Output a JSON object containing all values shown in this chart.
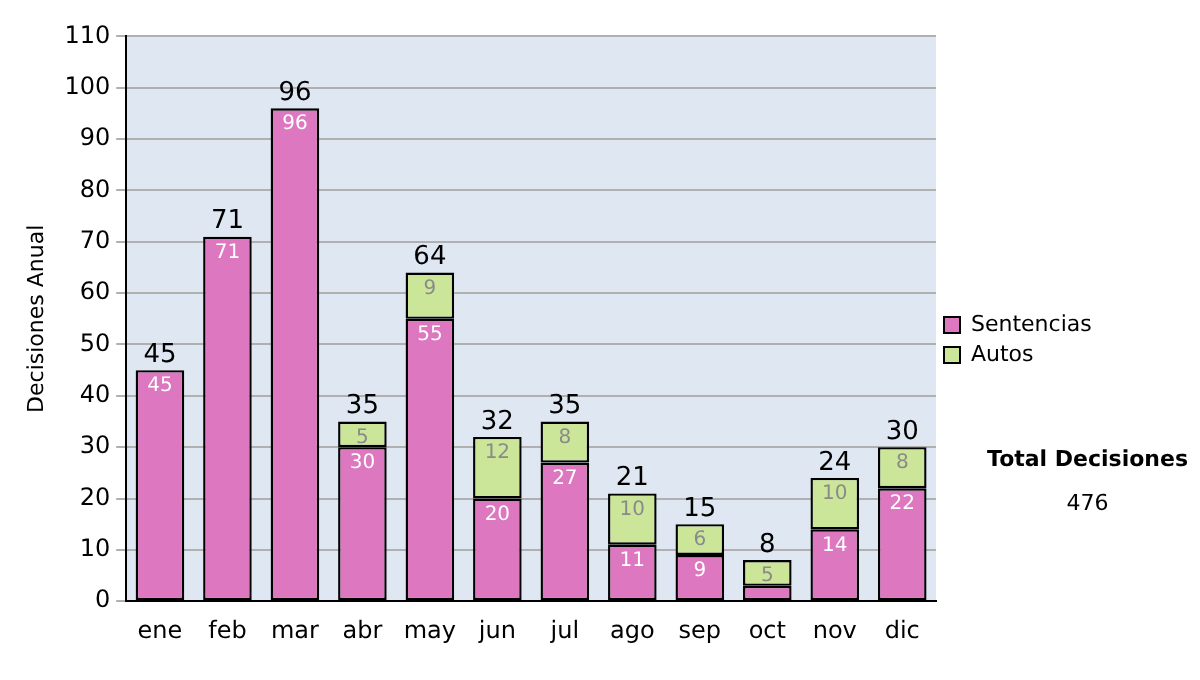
{
  "chart_data": {
    "type": "bar",
    "stacked": true,
    "ylabel": "Decisiones Anual",
    "categories": [
      "ene",
      "feb",
      "mar",
      "abr",
      "may",
      "jun",
      "jul",
      "ago",
      "sep",
      "oct",
      "nov",
      "dic"
    ],
    "series": [
      {
        "name": "Sentencias",
        "color": "#dd77c0",
        "values": [
          45,
          71,
          96,
          30,
          55,
          20,
          27,
          11,
          9,
          3,
          14,
          22
        ],
        "value_labels": [
          "45",
          "71",
          "96",
          "30",
          "55",
          "20",
          "27",
          "11",
          "9",
          null,
          "14",
          "22"
        ]
      },
      {
        "name": "Autos",
        "color": "#cce699",
        "values": [
          0,
          0,
          0,
          5,
          9,
          12,
          8,
          10,
          6,
          5,
          10,
          8
        ],
        "value_labels": [
          null,
          null,
          null,
          "5",
          "9",
          "12",
          "8",
          "10",
          "6",
          "5",
          "10",
          "8"
        ]
      }
    ],
    "totals": [
      "45",
      "71",
      "96",
      "35",
      "64",
      "32",
      "35",
      "21",
      "15",
      "8",
      "24",
      "30"
    ],
    "ylim": [
      0,
      110
    ],
    "yticks": [
      0,
      10,
      20,
      30,
      40,
      50,
      60,
      70,
      80,
      90,
      100,
      110
    ],
    "grid": "y",
    "legend": "right",
    "annotations": [
      "Total Decisiones",
      "476"
    ]
  }
}
